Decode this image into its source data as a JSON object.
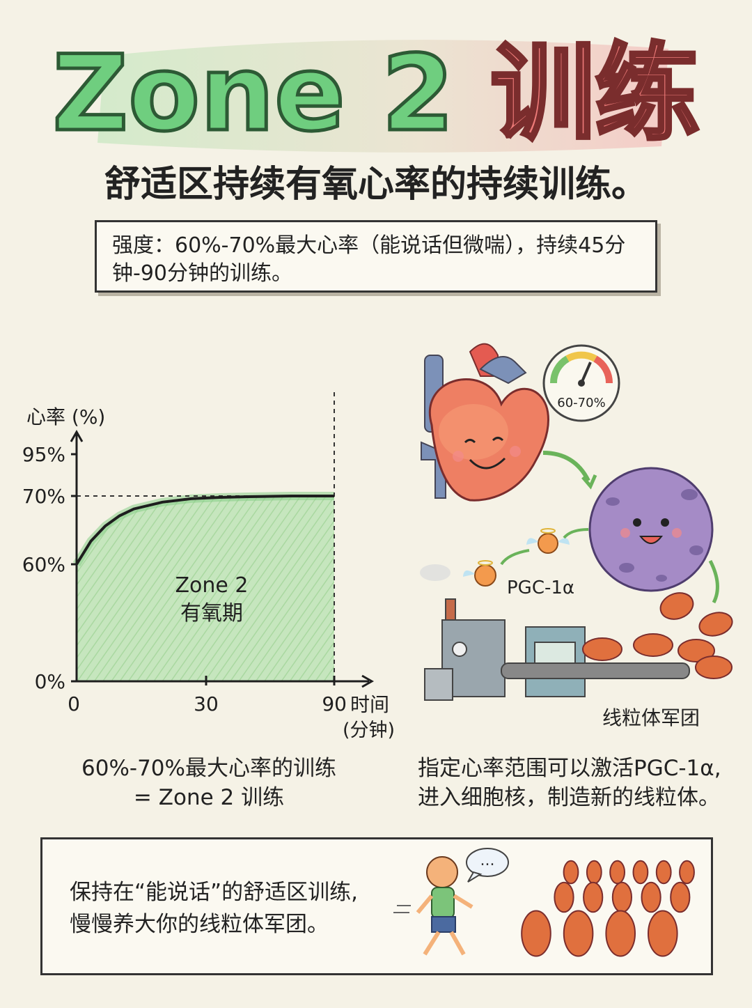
{
  "title": {
    "part1": "Zone 2",
    "part2": "训练"
  },
  "subtitle": "舒适区持续有氧心率的持续训练。",
  "intensity": "强度：60%-70%最大心率（能说话但微喘），持续45分钟-90分钟的训练。",
  "chart_data": {
    "type": "area",
    "ylabel": "心率 (%)",
    "xlabel_line1": "时间",
    "xlabel_line2": "(分钟)",
    "yticks": [
      "95%",
      "70%",
      "60%",
      "0%"
    ],
    "xticks": [
      "0",
      "30",
      "90"
    ],
    "zone_label_1": "Zone 2",
    "zone_label_2": "有氧期",
    "series": [
      {
        "x": [
          0,
          5,
          10,
          15,
          20,
          30,
          40,
          50,
          60,
          75,
          90
        ],
        "y": [
          60,
          63.4,
          65.6,
          67.1,
          68.1,
          69.1,
          69.6,
          69.8,
          69.9,
          70,
          70
        ]
      }
    ],
    "reference_lines": [
      95,
      70
    ],
    "shaded_band": {
      "x": [
        0,
        90
      ],
      "y": [
        0,
        70
      ]
    },
    "colors": {
      "line": "#1e1e1e",
      "fill": "#b9dfb2",
      "highlight": "#86cd86"
    }
  },
  "chart_caption": {
    "line1": "60%-70%最大心率的训练",
    "line2": "= Zone 2 训练"
  },
  "illustration": {
    "gauge_label": "60-70%",
    "pgc_label": "PGC-1α",
    "army_label": "线粒体军团"
  },
  "illus_caption": {
    "line1": "指定心率范围可以激活PGC-1α,",
    "line2": "进入细胞核，制造新的线粒体。"
  },
  "bottom": {
    "line1": "保持在“能说话”的舒适区训练,",
    "line2": "慢慢养大你的线粒体军团。",
    "speech": "..."
  }
}
